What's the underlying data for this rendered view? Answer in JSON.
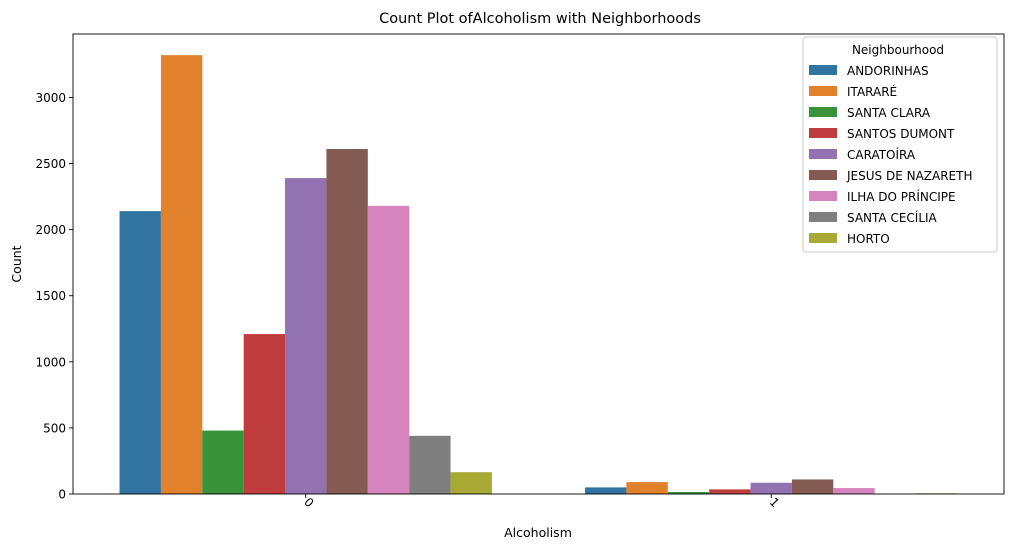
{
  "chart_data": {
    "type": "bar",
    "title": "Count Plot ofAlcoholism with Neighborhoods",
    "xlabel": "Alcoholism",
    "ylabel": "Count",
    "categories": [
      "0",
      "1"
    ],
    "ylim": [
      0,
      3480
    ],
    "yticks": [
      0,
      500,
      1000,
      1500,
      2000,
      2500,
      3000
    ],
    "grid": false,
    "legend_title": "Neighbourhood",
    "legend_position": "top-right",
    "series": [
      {
        "name": "ANDORINHAS",
        "color": "#3274a1",
        "values": [
          2140,
          50
        ]
      },
      {
        "name": "ITARARÉ",
        "color": "#e1812c",
        "values": [
          3320,
          90
        ]
      },
      {
        "name": "SANTA CLARA",
        "color": "#3a923a",
        "values": [
          480,
          15
        ]
      },
      {
        "name": "SANTOS DUMONT",
        "color": "#c03d3e",
        "values": [
          1210,
          35
        ]
      },
      {
        "name": "CARATOÍRA",
        "color": "#9372b2",
        "values": [
          2390,
          85
        ]
      },
      {
        "name": "JESUS DE NAZARETH",
        "color": "#845b53",
        "values": [
          2610,
          110
        ]
      },
      {
        "name": "ILHA DO PRÍNCIPE",
        "color": "#d684bd",
        "values": [
          2180,
          45
        ]
      },
      {
        "name": "SANTA CECÍLIA",
        "color": "#7f7f7f",
        "values": [
          440,
          0
        ]
      },
      {
        "name": "HORTO",
        "color": "#a9aa35",
        "values": [
          165,
          5
        ]
      }
    ]
  }
}
